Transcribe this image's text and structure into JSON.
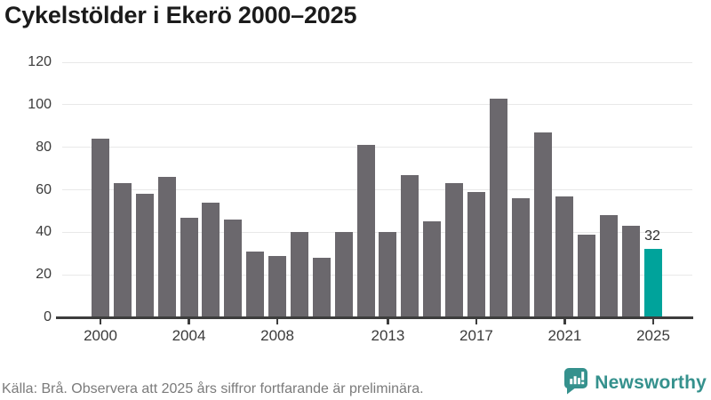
{
  "title": "Cykelstölder i Ekerö 2000–2025",
  "footer": {
    "source": "Källa: Brå. Observera att 2025 års siffror fortfarande är preliminära.",
    "brand": "Newsworthy"
  },
  "icons": {
    "brand_logo": "speech-bubble-bar-chart-icon"
  },
  "colors": {
    "bar": "#6b686d",
    "highlight": "#00a39b",
    "grid": "#e8e8e8",
    "axis": "#3d3d3d",
    "tick_text": "#3b3b3b",
    "muted_text": "#7b7b7b",
    "brand": "#35918d",
    "title_text": "#1b1b1b"
  },
  "chart_data": {
    "type": "bar",
    "title": "Cykelstölder i Ekerö 2000–2025",
    "categories": [
      "2000",
      "2001",
      "2002",
      "2003",
      "2004",
      "2005",
      "2006",
      "2007",
      "2008",
      "2009",
      "2010",
      "2011",
      "2012",
      "2013",
      "2014",
      "2015",
      "2016",
      "2017",
      "2018",
      "2019",
      "2020",
      "2021",
      "2022",
      "2023",
      "2024",
      "2025"
    ],
    "values": [
      84,
      63,
      58,
      66,
      47,
      54,
      46,
      31,
      29,
      40,
      28,
      40,
      81,
      40,
      67,
      45,
      63,
      59,
      103,
      56,
      87,
      57,
      39,
      48,
      43,
      32
    ],
    "highlight_index": 25,
    "highlight_value_label": "32",
    "xlabel": "",
    "ylabel": "",
    "ylim": [
      0,
      120
    ],
    "y_ticks": [
      0,
      20,
      40,
      60,
      80,
      100,
      120
    ],
    "x_tick_labels": [
      "2000",
      "2004",
      "2008",
      "2013",
      "2017",
      "2021",
      "2025"
    ],
    "x_tick_indices": [
      0,
      4,
      8,
      13,
      17,
      21,
      25
    ],
    "grid": true,
    "legend": false
  }
}
